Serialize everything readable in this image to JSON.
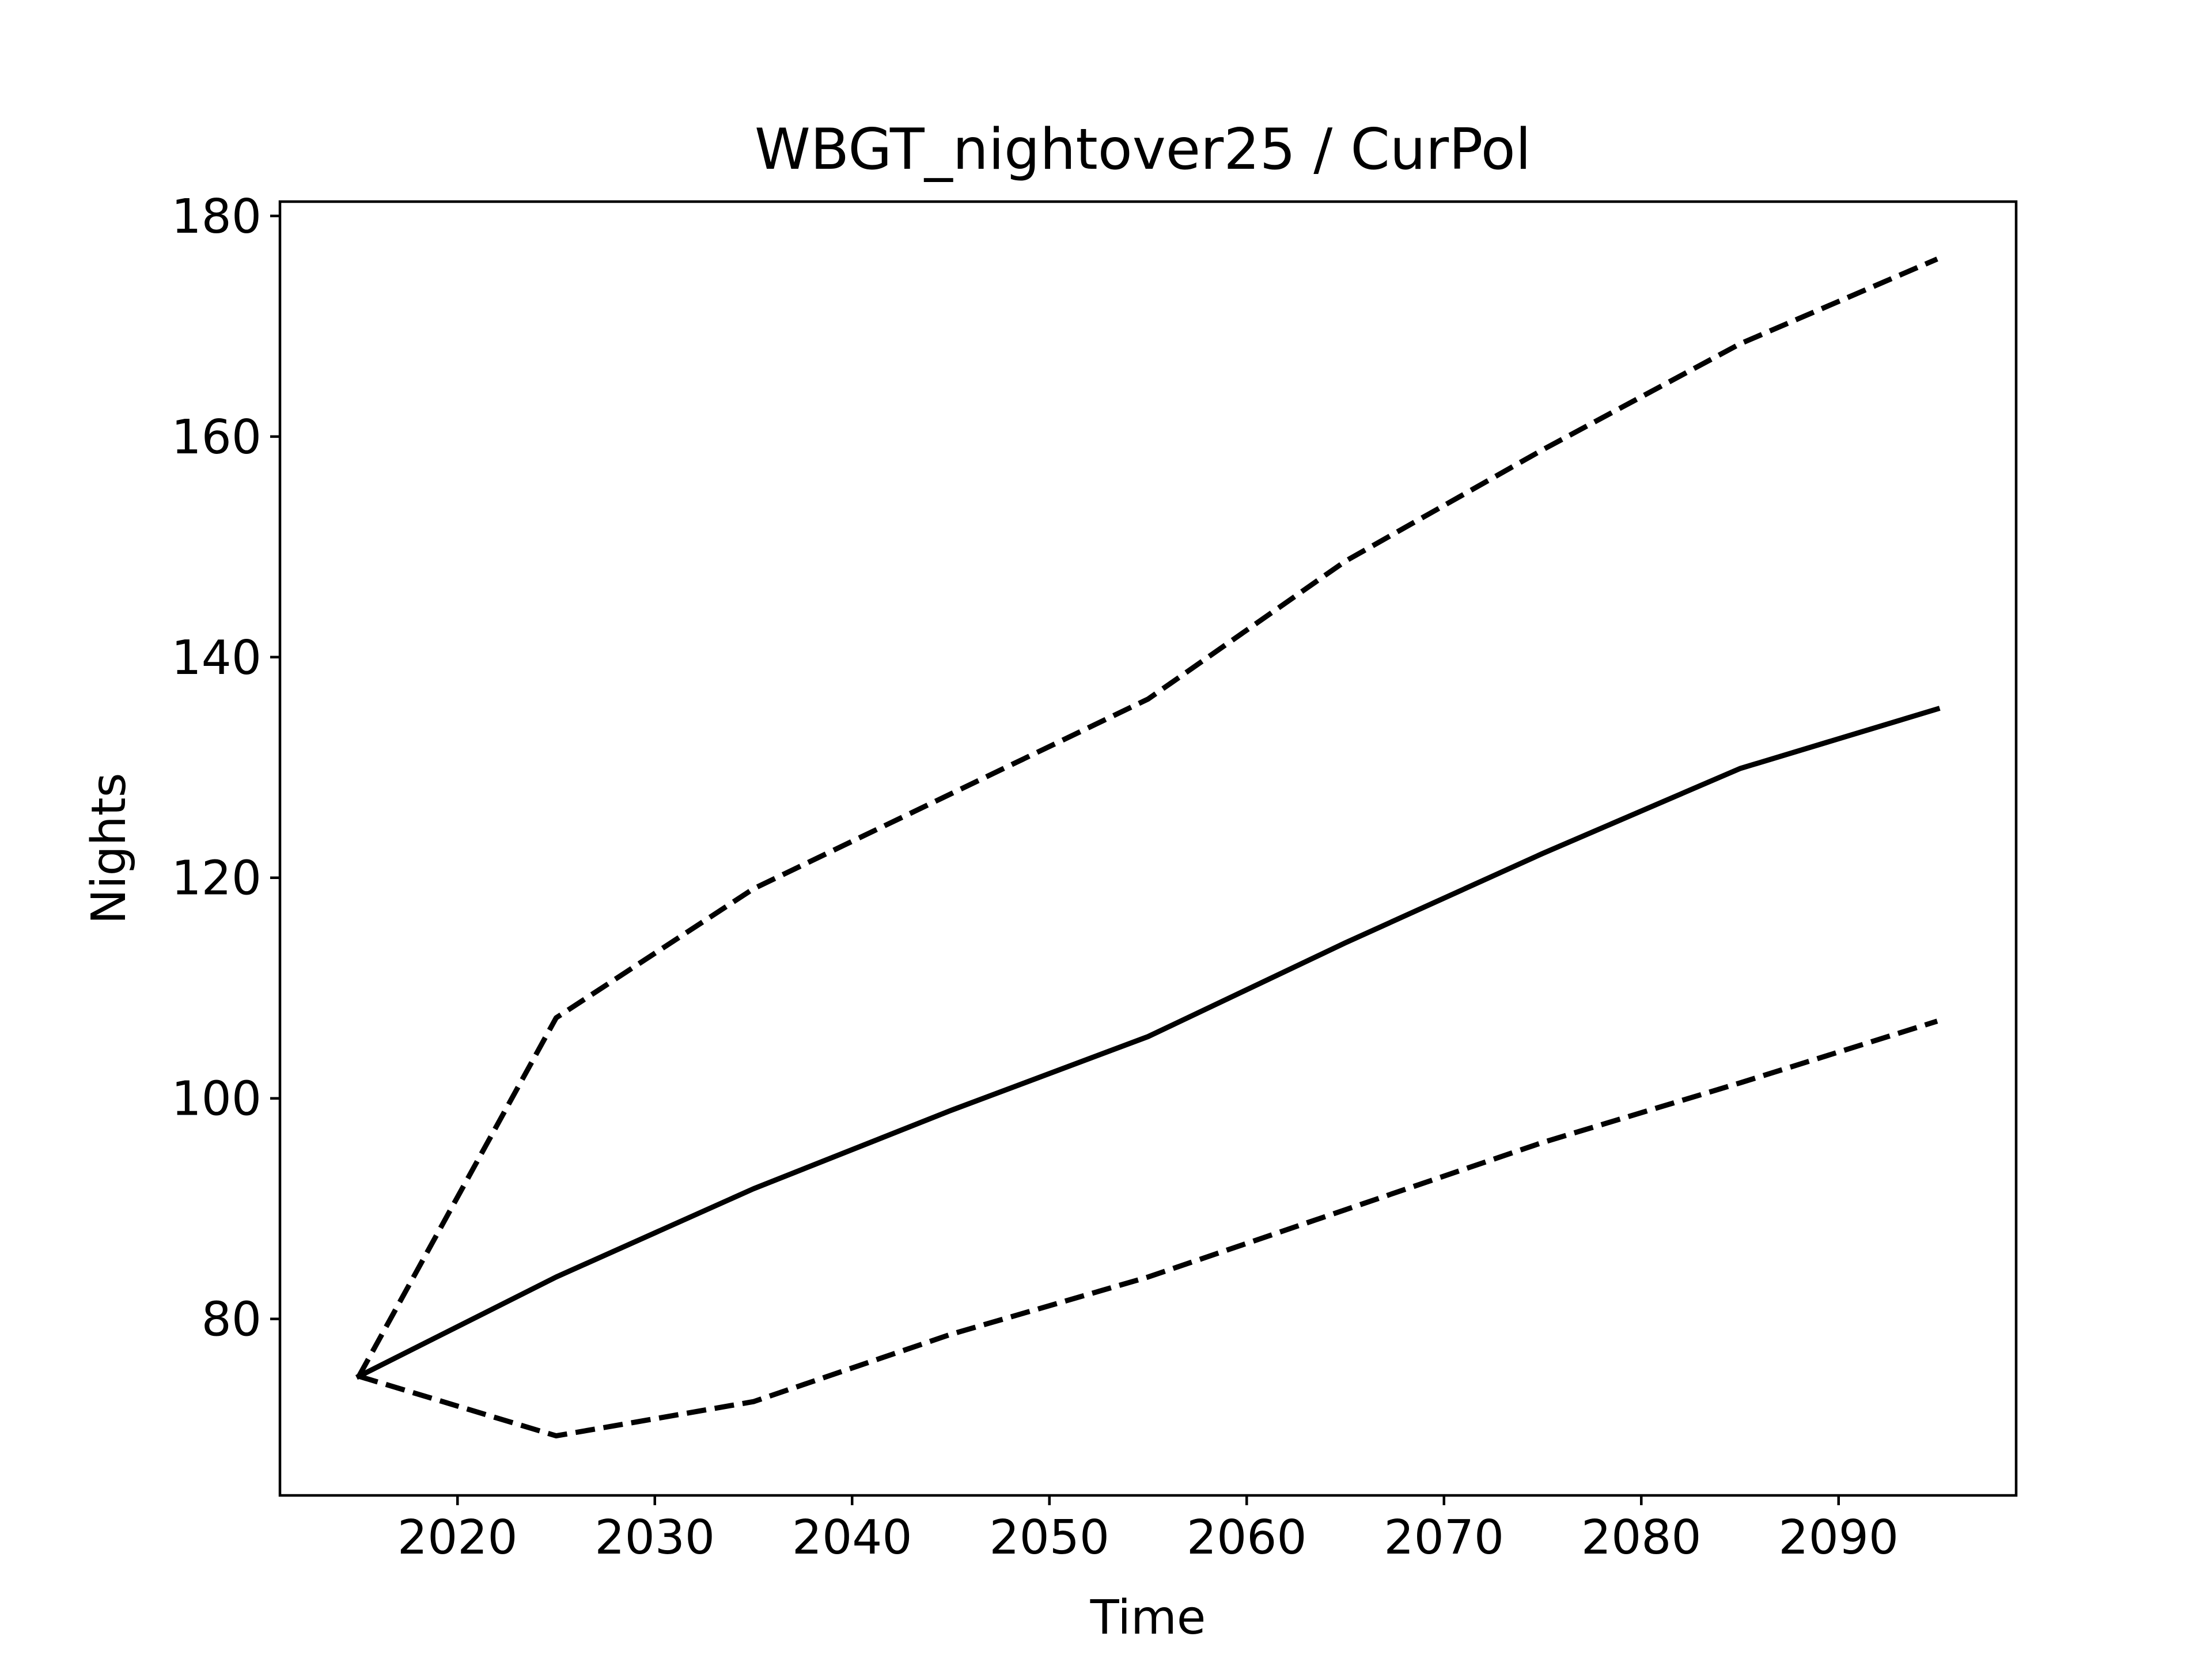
{
  "chart_data": {
    "type": "line",
    "title": "WBGT_nightover25 / CurPol",
    "xlabel": "Time",
    "ylabel": "Nights",
    "xlim": [
      2011,
      2099
    ],
    "ylim": [
      64,
      181.3
    ],
    "xticks": [
      2020,
      2030,
      2040,
      2050,
      2060,
      2070,
      2080,
      2090
    ],
    "yticks": [
      80,
      100,
      120,
      140,
      160,
      180
    ],
    "grid": false,
    "legend": "none",
    "x": [
      2015,
      2025,
      2035,
      2045,
      2055,
      2065,
      2075,
      2085,
      2095
    ],
    "series": [
      {
        "style": "solid",
        "values": [
          74.8,
          83.8,
          91.8,
          98.9,
          105.6,
          114.1,
          122.2,
          129.9,
          135.3
        ]
      },
      {
        "style": "dashed",
        "values": [
          74.8,
          107.3,
          119.0,
          127.6,
          136.2,
          148.7,
          158.8,
          168.4,
          176.1
        ]
      },
      {
        "style": "dashed",
        "values": [
          74.8,
          69.4,
          72.5,
          78.6,
          83.8,
          89.9,
          96.0,
          101.4,
          107.0
        ]
      }
    ],
    "colors": {
      "line": "#000000",
      "axes": "#000000",
      "background": "#ffffff"
    }
  }
}
